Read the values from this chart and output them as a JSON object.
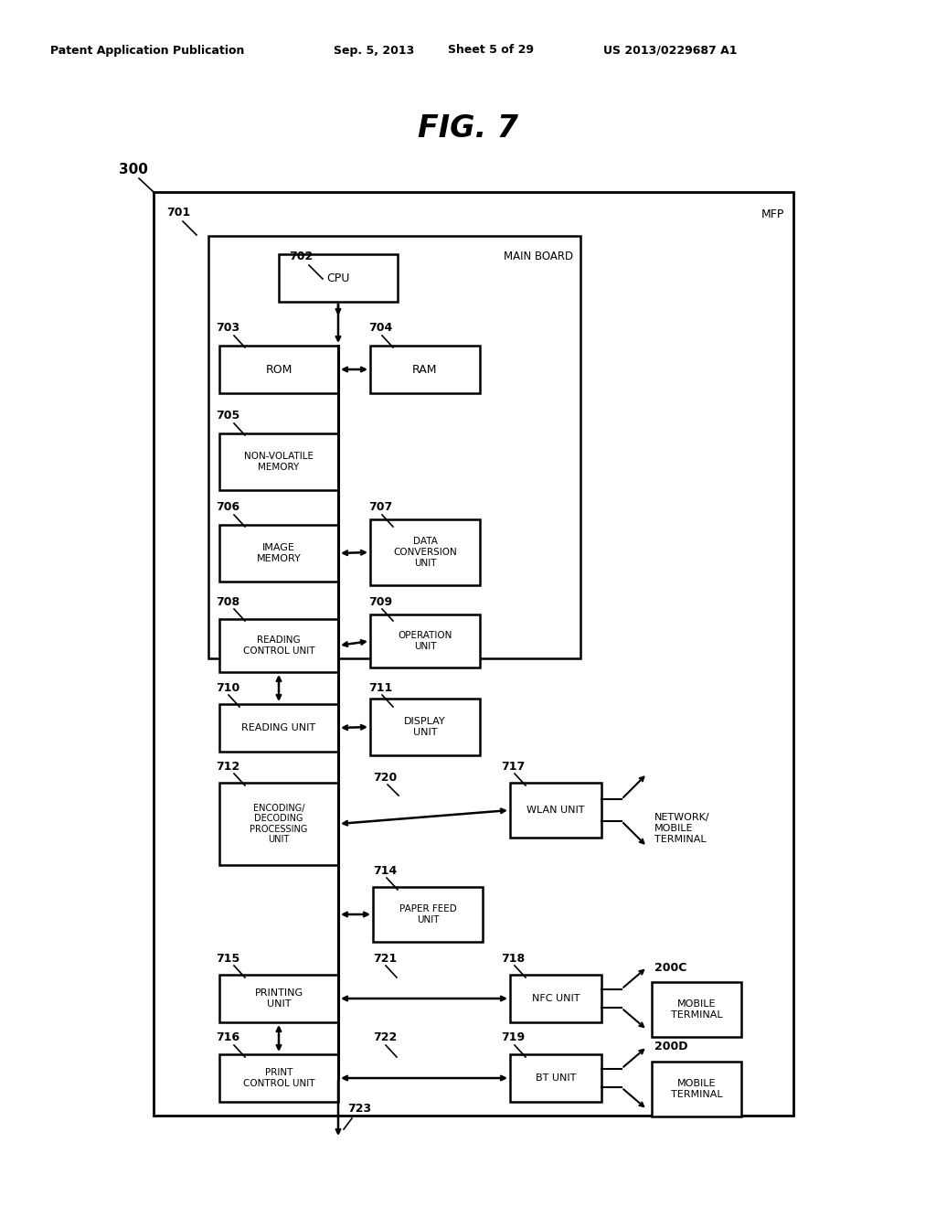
{
  "bg_color": "#ffffff",
  "header_text": "Patent Application Publication",
  "header_date": "Sep. 5, 2013",
  "header_sheet": "Sheet 5 of 29",
  "header_patent": "US 2013/0229687 A1",
  "fig_title": "FIG. 7",
  "label_300": "300",
  "label_MFP": "MFP",
  "label_701": "701",
  "label_702": "702",
  "label_703": "703",
  "label_704": "704",
  "label_705": "705",
  "label_706": "706",
  "label_707": "707",
  "label_708": "708",
  "label_709": "709",
  "label_710": "710",
  "label_711": "711",
  "label_712": "712",
  "label_714": "714",
  "label_715": "715",
  "label_716": "716",
  "label_717": "717",
  "label_718": "718",
  "label_719": "719",
  "label_720": "720",
  "label_721": "721",
  "label_722": "722",
  "label_723": "723",
  "label_200C": "200C",
  "label_200D": "200D",
  "box_CPU": "CPU",
  "box_ROM": "ROM",
  "box_RAM": "RAM",
  "box_NVM": "NON-VOLATILE\nMEMORY",
  "box_IMGMEM": "IMAGE\nMEMORY",
  "box_DATACONV": "DATA\nCONVERSION\nUNIT",
  "box_READCTRL": "READING\nCONTROL UNIT",
  "box_OPER": "OPERATION\nUNIT",
  "box_READUNIT": "READING UNIT",
  "box_DISP": "DISPLAY\nUNIT",
  "box_ENCDEC": "ENCODING/\nDECODING\nPROCESSING\nUNIT",
  "box_PAPERFEED": "PAPER FEED\nUNIT",
  "box_PRINT": "PRINTING\nUNIT",
  "box_PRINTCTRL": "PRINT\nCONTROL UNIT",
  "box_WLAN": "WLAN UNIT",
  "box_NFC": "NFC UNIT",
  "box_BT": "BT UNIT",
  "box_MOBILE1": "MOBILE\nTERMINAL",
  "box_MOBILE2": "MOBILE\nTERMINAL",
  "label_MAINBOARD": "MAIN BOARD",
  "label_NETMOBILE": "NETWORK/\nMOBILE\nTERMINAL"
}
